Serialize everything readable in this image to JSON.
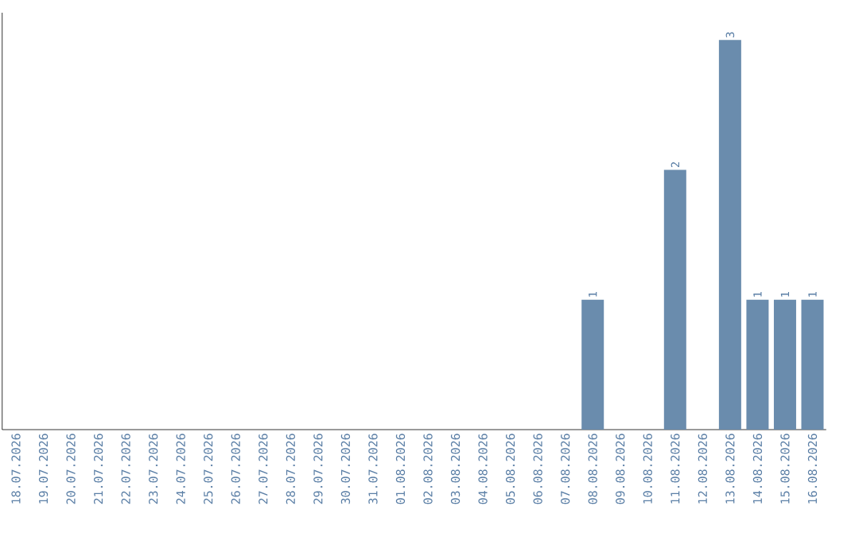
{
  "chart_data": {
    "type": "bar",
    "categories": [
      "18.07.2026",
      "19.07.2026",
      "20.07.2026",
      "21.07.2026",
      "22.07.2026",
      "23.07.2026",
      "24.07.2026",
      "25.07.2026",
      "26.07.2026",
      "27.07.2026",
      "28.07.2026",
      "29.07.2026",
      "30.07.2026",
      "31.07.2026",
      "01.08.2026",
      "02.08.2026",
      "03.08.2026",
      "04.08.2026",
      "05.08.2026",
      "06.08.2026",
      "07.08.2026",
      "08.08.2026",
      "09.08.2026",
      "10.08.2026",
      "11.08.2026",
      "12.08.2026",
      "13.08.2026",
      "14.08.2026",
      "15.08.2026",
      "16.08.2026"
    ],
    "values": [
      null,
      null,
      null,
      null,
      null,
      null,
      null,
      null,
      null,
      null,
      null,
      null,
      null,
      null,
      null,
      null,
      null,
      null,
      null,
      null,
      null,
      1,
      null,
      null,
      2,
      null,
      3,
      1,
      1,
      1
    ],
    "data_labels": true,
    "color": "#6a8cad"
  }
}
